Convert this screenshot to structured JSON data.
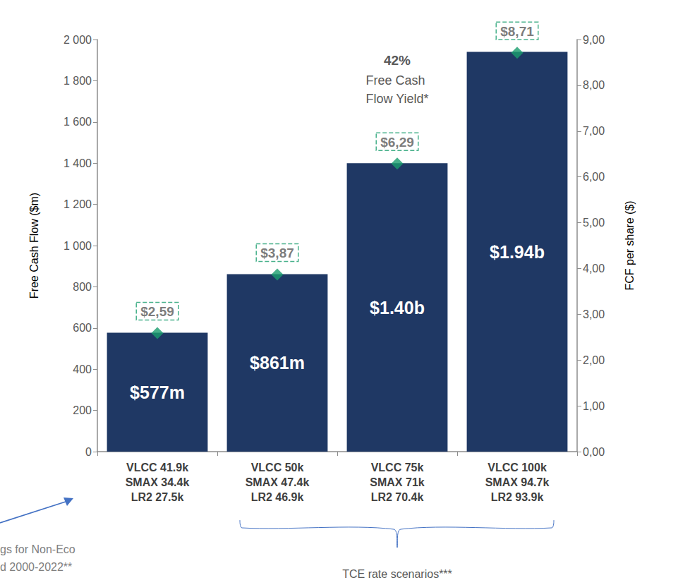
{
  "chart_data": {
    "type": "bar",
    "y_label": "Free Cash Flow ($m)",
    "y2_label": "FCF per share ($)",
    "categories": [
      "VLCC 41.9k\nSMAX 34.4k\nLR2 27.5k",
      "VLCC 50k\nSMAX 47.4k\nLR2 46.9k",
      "VLCC 75k\nSMAX 71k\nLR2 70.4k",
      "VLCC 100k\nSMAX 94.7k\nLR2 93.9k"
    ],
    "series": [
      {
        "type": "bar",
        "color": "#1f3864",
        "values": [
          577,
          861,
          1400,
          1940
        ],
        "value_labels": [
          "$577m",
          "$861m",
          "$1.40b",
          "$1.94b"
        ]
      },
      {
        "type": "scatter",
        "axis": "y2",
        "marker": "diamond",
        "color": "#1a9e6e",
        "values": [
          2.59,
          3.87,
          6.29,
          8.71
        ],
        "value_labels": [
          "$2,59",
          "$3,87",
          "$6,29",
          "$8,71"
        ]
      }
    ],
    "ylim": [
      0,
      2000
    ],
    "yticks": [
      0,
      200,
      400,
      600,
      800,
      {
        "value": 1000,
        "label": "1 000"
      },
      {
        "value": 1200,
        "label": "1 200"
      },
      {
        "value": 1400,
        "label": "1 400"
      },
      {
        "value": 1600,
        "label": "1 600"
      },
      {
        "value": 1800,
        "label": "1 800"
      },
      {
        "value": 2000,
        "label": "2 000"
      }
    ],
    "y2lim": [
      0,
      9
    ],
    "y2ticks": [
      {
        "value": 0,
        "label": "0,00"
      },
      {
        "value": 1,
        "label": "1,00"
      },
      {
        "value": 2,
        "label": "2,00"
      },
      {
        "value": 3,
        "label": "3,00"
      },
      {
        "value": 4,
        "label": "4,00"
      },
      {
        "value": 5,
        "label": "5,00"
      },
      {
        "value": 6,
        "label": "6,00"
      },
      {
        "value": 7,
        "label": "7,00"
      },
      {
        "value": 8,
        "label": "8,00"
      },
      {
        "value": 9,
        "label": "9,00"
      }
    ],
    "annotations": [
      "42%",
      "Free Cash Flow Yield*",
      "TCE rate scenarios***",
      "gs for Non-Eco",
      "d 2000-2022**"
    ],
    "grid": false,
    "data_labels": true
  }
}
